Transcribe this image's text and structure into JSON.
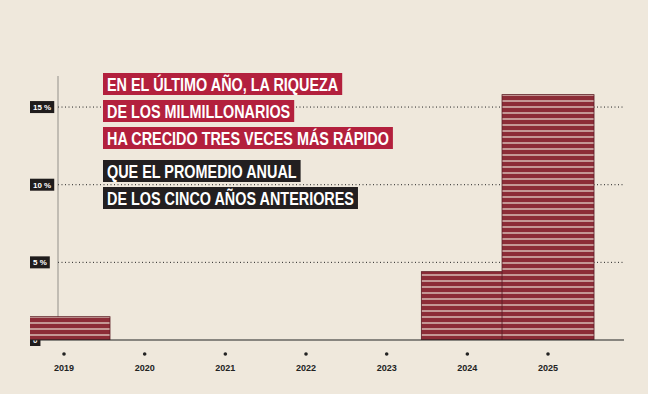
{
  "chart_data": {
    "type": "bar",
    "title": [
      "EN EL ÚLTIMO AÑO, LA RIQUEZA",
      "DE LOS MILMILLONARIOS",
      "HA CRECIDO TRES VECES MÁS RÁPIDO"
    ],
    "subtitle": [
      "QUE EL PROMEDIO ANUAL",
      "DE LOS CINCO AÑOS ANTERIORES"
    ],
    "categories": [
      "2019",
      "2020",
      "2021",
      "2022",
      "2023",
      "2024",
      "2025"
    ],
    "values": [
      1.5,
      null,
      null,
      null,
      null,
      4.4,
      15.8
    ],
    "color": "#8c2c37",
    "ylim": [
      0,
      17
    ],
    "yticks": [
      0,
      {
        "value": 5,
        "label": "5 %"
      },
      {
        "value": 10,
        "label": "10 %"
      },
      {
        "value": 15,
        "label": "15 %"
      }
    ],
    "grid": true
  }
}
